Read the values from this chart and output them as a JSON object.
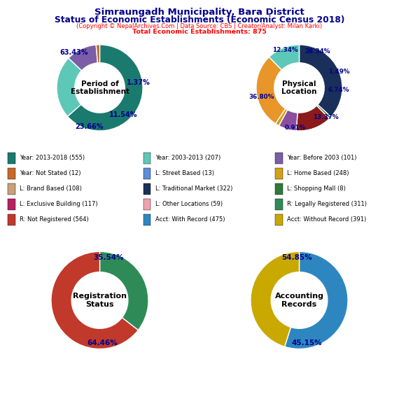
{
  "title1": "Simraungadh Municipality, Bara District",
  "title2": "Status of Economic Establishments (Economic Census 2018)",
  "subtitle": "(Copyright © NepalArchives.Com | Data Source: CBS | Creator/Analyst: Milan Karki)",
  "total_label": "Total Economic Establishments: 875",
  "pie1_label": "Period of\nEstablishment",
  "pie1_values": [
    63.43,
    23.66,
    11.54,
    1.37
  ],
  "pie1_colors": [
    "#1B7A6E",
    "#5EC8B8",
    "#7B5EA7",
    "#C8692A"
  ],
  "pie1_startangle": 90,
  "pie1_labels": [
    "63.43%",
    "23.66%",
    "11.54%",
    "1.37%"
  ],
  "pie2_label": "Physical\nLocation",
  "pie2_values": [
    36.8,
    0.91,
    13.37,
    6.74,
    1.49,
    28.34,
    12.34
  ],
  "pie2_colors": [
    "#1A2F5A",
    "#2D7A3A",
    "#8B1A1A",
    "#8B4FA0",
    "#D4A017",
    "#E8952A",
    "#5EC8B8"
  ],
  "pie2_startangle": 90,
  "pie2_labels": [
    "36.80%",
    "0.91%",
    "13.37%",
    "6.74%",
    "1.49%",
    "28.34%",
    "12.34%"
  ],
  "pie3_label": "Registration\nStatus",
  "pie3_values": [
    35.54,
    64.46
  ],
  "pie3_colors": [
    "#2E8B57",
    "#C0392B"
  ],
  "pie3_startangle": 90,
  "pie3_labels": [
    "35.54%",
    "64.46%"
  ],
  "pie4_label": "Accounting\nRecords",
  "pie4_values": [
    54.85,
    45.15
  ],
  "pie4_colors": [
    "#2E86C1",
    "#C9A800"
  ],
  "pie4_startangle": 90,
  "pie4_labels": [
    "54.85%",
    "45.15%"
  ],
  "legend_items": [
    {
      "label": "Year: 2013-2018 (555)",
      "color": "#1B7A6E"
    },
    {
      "label": "Year: 2003-2013 (207)",
      "color": "#5EC8B8"
    },
    {
      "label": "Year: Before 2003 (101)",
      "color": "#7B5EA7"
    },
    {
      "label": "Year: Not Stated (12)",
      "color": "#C8692A"
    },
    {
      "label": "L: Street Based (13)",
      "color": "#5B8DD9"
    },
    {
      "label": "L: Home Based (248)",
      "color": "#D4A017"
    },
    {
      "label": "L: Brand Based (108)",
      "color": "#C8A07A"
    },
    {
      "label": "L: Traditional Market (322)",
      "color": "#1A2F5A"
    },
    {
      "label": "L: Shopping Mall (8)",
      "color": "#2D7A3A"
    },
    {
      "label": "L: Exclusive Building (117)",
      "color": "#B82060"
    },
    {
      "label": "L: Other Locations (59)",
      "color": "#F0A0B0"
    },
    {
      "label": "R: Legally Registered (311)",
      "color": "#2E8B57"
    },
    {
      "label": "R: Not Registered (564)",
      "color": "#C0392B"
    },
    {
      "label": "Acct: With Record (475)",
      "color": "#2E86C1"
    },
    {
      "label": "Acct: Without Record (391)",
      "color": "#C9A800"
    }
  ]
}
